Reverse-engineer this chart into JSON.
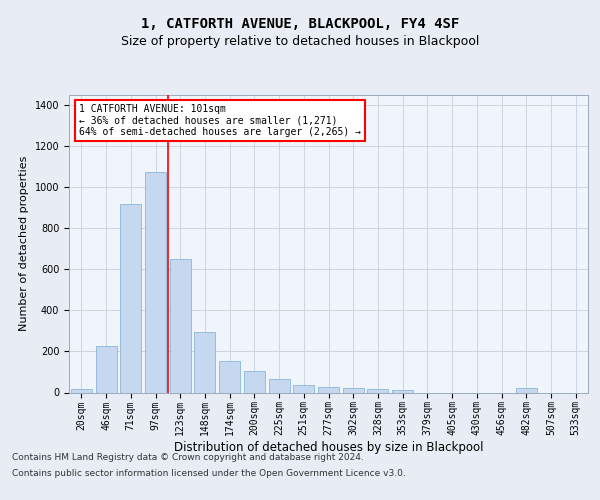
{
  "title": "1, CATFORTH AVENUE, BLACKPOOL, FY4 4SF",
  "subtitle": "Size of property relative to detached houses in Blackpool",
  "xlabel": "Distribution of detached houses by size in Blackpool",
  "ylabel": "Number of detached properties",
  "categories": [
    "20sqm",
    "46sqm",
    "71sqm",
    "97sqm",
    "123sqm",
    "148sqm",
    "174sqm",
    "200sqm",
    "225sqm",
    "251sqm",
    "277sqm",
    "302sqm",
    "328sqm",
    "353sqm",
    "379sqm",
    "405sqm",
    "430sqm",
    "456sqm",
    "482sqm",
    "507sqm",
    "533sqm"
  ],
  "values": [
    15,
    225,
    920,
    1075,
    650,
    295,
    155,
    105,
    65,
    35,
    25,
    20,
    15,
    10,
    0,
    0,
    0,
    0,
    20,
    0,
    0
  ],
  "bar_color": "#c5d8f0",
  "bar_edge_color": "#7aadd4",
  "vline_color": "red",
  "vline_x_index": 3.5,
  "annotation_text": "1 CATFORTH AVENUE: 101sqm\n← 36% of detached houses are smaller (1,271)\n64% of semi-detached houses are larger (2,265) →",
  "annotation_box_color": "white",
  "annotation_box_edge_color": "red",
  "ylim": [
    0,
    1450
  ],
  "yticks": [
    0,
    200,
    400,
    600,
    800,
    1000,
    1200,
    1400
  ],
  "footer_line1": "Contains HM Land Registry data © Crown copyright and database right 2024.",
  "footer_line2": "Contains public sector information licensed under the Open Government Licence v3.0.",
  "bg_color": "#e8edf5",
  "plot_bg_color": "#f0f4fb",
  "title_fontsize": 10,
  "subtitle_fontsize": 9,
  "ylabel_fontsize": 8,
  "xlabel_fontsize": 8.5,
  "tick_fontsize": 7,
  "annotation_fontsize": 7,
  "footer_fontsize": 6.5
}
